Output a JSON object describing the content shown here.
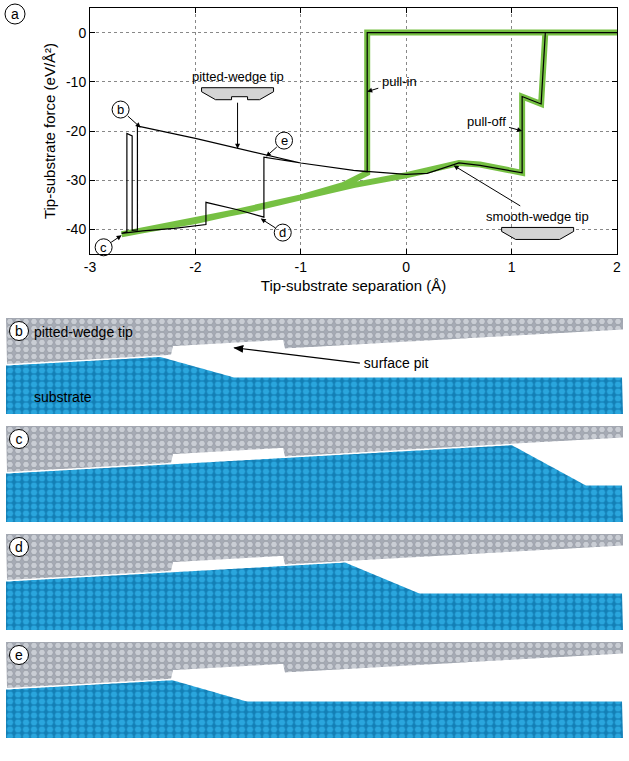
{
  "chart_data": {
    "type": "line",
    "label": "a",
    "x_label": "Tip-substrate separation (Å)",
    "y_label": "Tip-substrate force (eV/Å²)",
    "xlim": [
      -3,
      2
    ],
    "xticks": [
      -3,
      -2,
      -1,
      0,
      1,
      2
    ],
    "ylim": [
      -45,
      5
    ],
    "yticks": [
      -40,
      -30,
      -20,
      -10,
      0
    ],
    "grid": true,
    "series": [
      {
        "color": "#76c043",
        "line_style": "thick",
        "x": [
          2,
          -0.37,
          -0.37,
          -0.6,
          -1,
          -1.5,
          -2,
          -2.5,
          -2.7,
          -2.5,
          -2,
          -1.5,
          -1,
          -0.5,
          0,
          0.3,
          0.5,
          0.7,
          0.9,
          1.1,
          1.1,
          1.2,
          1.28,
          1.32,
          2
        ],
        "values": [
          0,
          0,
          -28.5,
          -31,
          -33.5,
          -36,
          -38.3,
          -40.2,
          -41,
          -40.2,
          -38.3,
          -36,
          -33.5,
          -31,
          -29,
          -27.5,
          -26.5,
          -26.8,
          -27.5,
          -28.5,
          -13,
          -14,
          -14.5,
          0,
          0
        ]
      },
      {
        "color": "#000000",
        "line_style": "solid",
        "x": [
          2,
          -0.37,
          -0.37,
          -0.5,
          -1,
          -1.35,
          -1.35,
          -1.6,
          -1.9,
          -1.9,
          -2.2,
          -2.5,
          -2.7,
          -2.65,
          -2.65,
          -2.6,
          -2.6,
          -2.55,
          -2.55,
          -2.5,
          -2,
          -1.5,
          -1,
          -0.5,
          0,
          0.2,
          0.5,
          0.7,
          1.1,
          1.1,
          1.28,
          1.32,
          2
        ],
        "values": [
          0,
          0,
          -28.3,
          -28,
          -26.5,
          -25.3,
          -37.5,
          -36,
          -34.5,
          -39,
          -39.8,
          -40.3,
          -40.8,
          -40.5,
          -20.5,
          -21,
          -40.2,
          -40.1,
          -19,
          -19.2,
          -21.5,
          -24,
          -26.5,
          -28,
          -28.8,
          -28.6,
          -26.5,
          -27,
          -28.5,
          -13,
          -14.5,
          0,
          0
        ]
      }
    ],
    "annotations": [
      {
        "text": "pitted-wedge tip"
      },
      {
        "text": "smooth-wedge tip"
      },
      {
        "text": "pull-in"
      },
      {
        "text": "pull-off"
      },
      {
        "text": "b"
      },
      {
        "text": "c"
      },
      {
        "text": "d"
      },
      {
        "text": "e"
      }
    ]
  },
  "panels": [
    {
      "label": "b",
      "tip": "pitted-wedge tip",
      "substrate": "substrate",
      "pit": "surface pit"
    },
    {
      "label": "c"
    },
    {
      "label": "d"
    },
    {
      "label": "e"
    }
  ]
}
